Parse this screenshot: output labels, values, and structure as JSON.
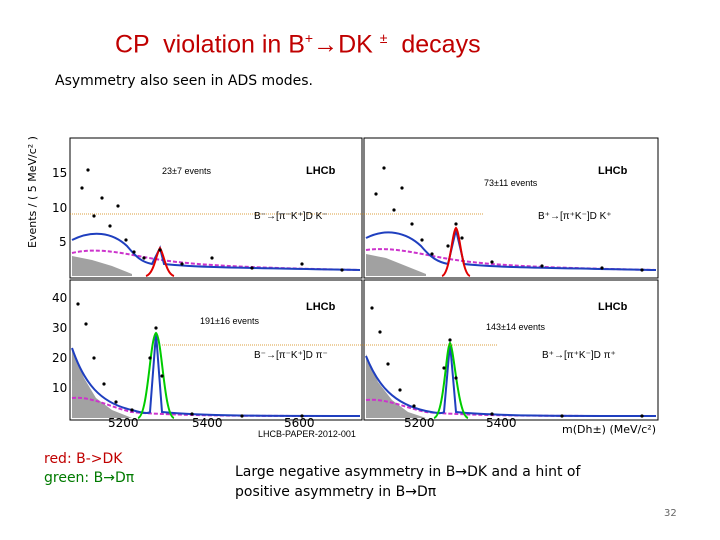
{
  "slide": {
    "title_a": "CP  violation in B",
    "title_sup1": "+",
    "title_arrow": "→",
    "title_b": "DK ",
    "title_sup2": "±",
    "title_c": "  decays",
    "subtitle": "Asymmetry also seen in  ADS modes.",
    "page_number": "32"
  },
  "figure": {
    "ylabel": "Events / ( 5 MeV/c² )",
    "xlabel": "m(Dh±) (MeV/c²)",
    "paper_ref": "LHCB-PAPER-2012-001",
    "x_ticks": [
      "5200",
      "5400",
      "5600"
    ],
    "top_y_ticks": [
      "15",
      "10",
      "5"
    ],
    "bottom_y_ticks": [
      "40",
      "30",
      "20",
      "10"
    ],
    "lhcb": "LHCb",
    "panels": {
      "tl_count": "23±7 events",
      "tr_count": "73±11 events",
      "bl_count": "191±16 events",
      "br_count": "143±14 events",
      "tl_mode": "B⁻→[π⁻K⁺]D K⁻",
      "tr_mode": "B⁺→[π⁺K⁻]D K⁺",
      "bl_mode": "B⁻→[π⁻K⁺]D π⁻",
      "br_mode": "B⁺→[π⁺K⁻]D π⁺"
    },
    "colors": {
      "signal_dk": "#e00000",
      "signal_dpi": "#00cc00",
      "fit": "#1f3fbf",
      "background": "#cc33cc"
    }
  },
  "legend": {
    "red": "red:  B->DK",
    "green_a": "green: B",
    "green_arrow": "→",
    "green_b": "Dπ"
  },
  "conclusion": {
    "a": "Large negative asymmetry in B",
    "arrow1": "→",
    "b": "DK  and a hint of positive asymmetry in B",
    "arrow2": "→",
    "c": "Dπ"
  }
}
